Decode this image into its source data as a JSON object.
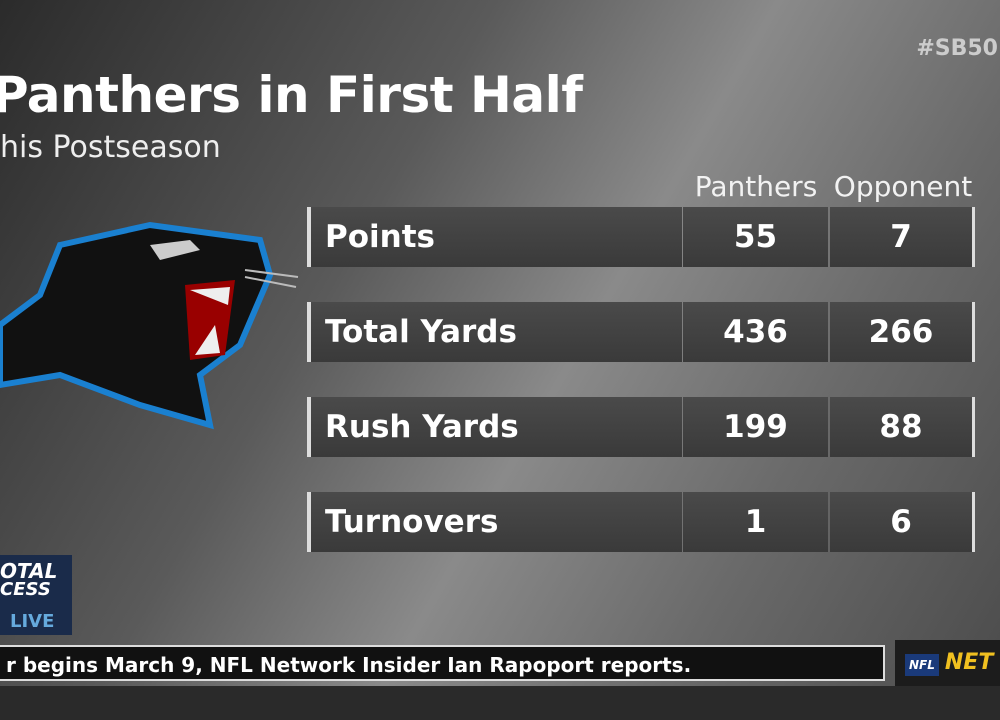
{
  "header": {
    "hashtag": "#SB50",
    "title": "Panthers in First Half",
    "subtitle": "his Postseason"
  },
  "table": {
    "columns": [
      "Panthers",
      "Opponent"
    ],
    "rows": [
      [
        "Points",
        55,
        7
      ],
      [
        "Total Yards",
        436,
        266
      ],
      [
        "Rush Yards",
        199,
        88
      ],
      [
        "Turnovers",
        1,
        6
      ]
    ]
  },
  "show": {
    "logo_lines": [
      "OTAL",
      "CESS"
    ],
    "live": "LIVE"
  },
  "ticker": {
    "text": "r begins March 9, NFL Network Insider Ian Rapoport reports.",
    "league": "NFL",
    "network": "NET"
  }
}
